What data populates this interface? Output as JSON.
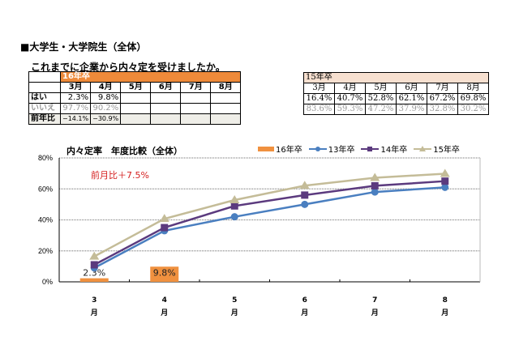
{
  "section_title": "■大学生・大学院生（全体）",
  "question": "これまでに企業から内々定を受けましたか。",
  "table16": {
    "header": "16年卒",
    "months": [
      "3月",
      "4月",
      "5月",
      "6月",
      "7月",
      "8月"
    ],
    "rows": [
      {
        "label": "はい",
        "values": [
          "2.3%",
          "9.8%",
          "",
          "",
          "",
          ""
        ]
      },
      {
        "label": "いいえ",
        "values": [
          "97.7%",
          "90.2%",
          "",
          "",
          "",
          ""
        ]
      },
      {
        "label": "前年比",
        "values": [
          "−14.1%",
          "−30.9%",
          "",
          "",
          "",
          ""
        ]
      }
    ]
  },
  "table15": {
    "header": "15年卒",
    "months": [
      "3月",
      "4月",
      "5月",
      "6月",
      "7月",
      "8月"
    ],
    "rows": [
      {
        "values": [
          "16.4%",
          "40.7%",
          "52.8%",
          "62.1%",
          "67.2%",
          "69.8%"
        ]
      },
      {
        "values": [
          "83.6%",
          "59.3%",
          "47.2%",
          "37.9%",
          "32.8%",
          "30.2%"
        ]
      }
    ]
  },
  "chart_data": {
    "type": "line",
    "title": "内々定率　年度比較（全体）",
    "annotation": "前月比＋7.5%",
    "categories": [
      "3月",
      "4月",
      "5月",
      "6月",
      "7月",
      "8月"
    ],
    "xlabel": "",
    "ylabel": "",
    "ylim": [
      0,
      80
    ],
    "yticks": [
      "0%",
      "20%",
      "40%",
      "60%",
      "80%"
    ],
    "grid": true,
    "legend_position": "top-right",
    "series": [
      {
        "name": "16年卒",
        "type": "bar",
        "color": "#f0913f",
        "values": [
          2.3,
          9.8,
          null,
          null,
          null,
          null
        ],
        "labels": [
          "2.3%",
          "9.8%"
        ]
      },
      {
        "name": "13年卒",
        "type": "line",
        "marker": "circle",
        "color": "#4a7fc0",
        "values": [
          9,
          33,
          42,
          50,
          58,
          61
        ]
      },
      {
        "name": "14年卒",
        "type": "line",
        "marker": "square",
        "color": "#5b3a7e",
        "values": [
          11,
          35,
          49,
          56,
          62,
          65
        ]
      },
      {
        "name": "15年卒",
        "type": "line",
        "marker": "triangle",
        "color": "#c4bc98",
        "values": [
          16.4,
          40.7,
          52.8,
          62.1,
          67.2,
          69.8
        ]
      }
    ]
  }
}
